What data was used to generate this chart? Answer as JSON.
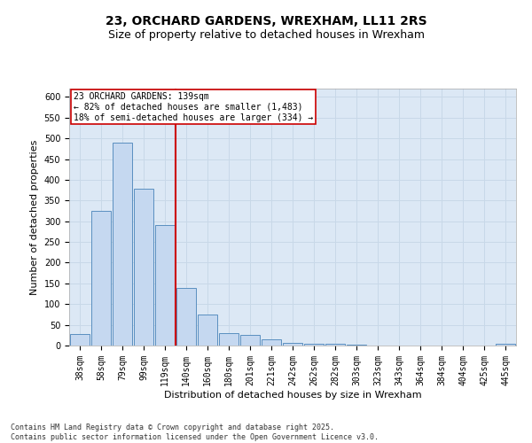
{
  "title": "23, ORCHARD GARDENS, WREXHAM, LL11 2RS",
  "subtitle": "Size of property relative to detached houses in Wrexham",
  "xlabel": "Distribution of detached houses by size in Wrexham",
  "ylabel": "Number of detached properties",
  "categories": [
    "38sqm",
    "58sqm",
    "79sqm",
    "99sqm",
    "119sqm",
    "140sqm",
    "160sqm",
    "180sqm",
    "201sqm",
    "221sqm",
    "242sqm",
    "262sqm",
    "282sqm",
    "303sqm",
    "323sqm",
    "343sqm",
    "364sqm",
    "384sqm",
    "404sqm",
    "425sqm",
    "445sqm"
  ],
  "values": [
    28,
    325,
    490,
    378,
    290,
    140,
    75,
    30,
    26,
    14,
    7,
    5,
    4,
    2,
    1,
    1,
    0,
    0,
    0,
    0,
    4
  ],
  "bar_color": "#c5d8f0",
  "bar_edge_color": "#5a8fc0",
  "grid_color": "#c8d8e8",
  "background_color": "#dce8f5",
  "fig_background": "#ffffff",
  "vline_color": "#cc0000",
  "vline_x_index": 4,
  "annotation_text": "23 ORCHARD GARDENS: 139sqm\n← 82% of detached houses are smaller (1,483)\n18% of semi-detached houses are larger (334) →",
  "annotation_box_color": "#ffffff",
  "annotation_box_edge": "#cc0000",
  "footer": "Contains HM Land Registry data © Crown copyright and database right 2025.\nContains public sector information licensed under the Open Government Licence v3.0.",
  "ylim": [
    0,
    620
  ],
  "yticks": [
    0,
    50,
    100,
    150,
    200,
    250,
    300,
    350,
    400,
    450,
    500,
    550,
    600
  ],
  "title_fontsize": 10,
  "subtitle_fontsize": 9,
  "xlabel_fontsize": 8,
  "ylabel_fontsize": 8,
  "tick_fontsize": 7,
  "footer_fontsize": 6,
  "annotation_fontsize": 7
}
